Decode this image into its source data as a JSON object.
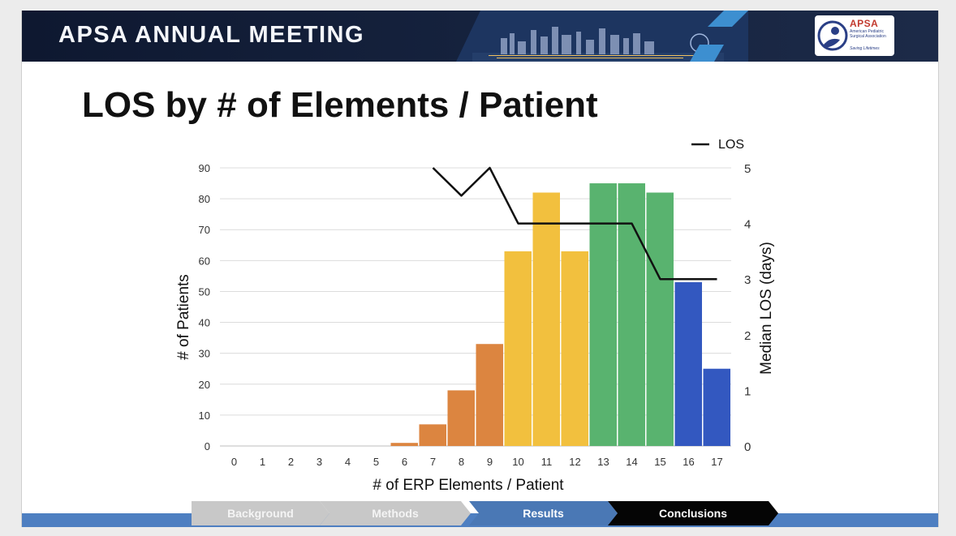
{
  "header": {
    "meeting_title": "APSA ANNUAL MEETING",
    "logo_name": "APSA",
    "logo_subtitle": "American Pediatric Surgical Association",
    "logo_tagline": "Saving Lifetimes"
  },
  "slide_title": "LOS by # of Elements / Patient",
  "nav": {
    "steps": [
      "Background",
      "Methods",
      "Results",
      "Conclusions"
    ],
    "active": "Results"
  },
  "colors": {
    "banner": "#16233f",
    "orange": "#dc8540",
    "yellow": "#f2c03e",
    "green": "#59b36f",
    "blue": "#3358c0",
    "line": "#111111",
    "bottom_bar": "#4e7fc1"
  },
  "chart_data": {
    "type": "bar",
    "categories": [
      "0",
      "1",
      "2",
      "3",
      "4",
      "5",
      "6",
      "7",
      "8",
      "9",
      "10",
      "11",
      "12",
      "13",
      "14",
      "15",
      "16",
      "17"
    ],
    "series": [
      {
        "values": [
          0,
          0,
          0,
          0,
          0,
          0,
          1,
          7,
          18,
          33,
          63,
          82,
          63,
          85,
          85,
          82,
          53,
          25
        ],
        "colors": [
          "orange",
          "orange",
          "orange",
          "orange",
          "orange",
          "orange",
          "orange",
          "orange",
          "orange",
          "orange",
          "yellow",
          "yellow",
          "yellow",
          "green",
          "green",
          "green",
          "blue",
          "blue"
        ],
        "axis": "left"
      },
      {
        "name": "LOS",
        "type": "line",
        "axis": "right",
        "x": [
          "7",
          "8",
          "9",
          "10",
          "11",
          "12",
          "13",
          "14",
          "15",
          "16",
          "17"
        ],
        "values": [
          5,
          4.5,
          5,
          4,
          4,
          4,
          4,
          4,
          3,
          3,
          3
        ]
      }
    ],
    "xlabel": "# of ERP Elements / Patient",
    "ylabel": "# of Patients",
    "y2label": "Median LOS (days)",
    "ylim": [
      0,
      90
    ],
    "yticks": [
      0,
      10,
      20,
      30,
      40,
      50,
      60,
      70,
      80,
      90
    ],
    "y2lim": [
      0,
      5
    ],
    "y2ticks": [
      0,
      1,
      2,
      3,
      4,
      5
    ],
    "grid": true,
    "legend": "top-right"
  }
}
